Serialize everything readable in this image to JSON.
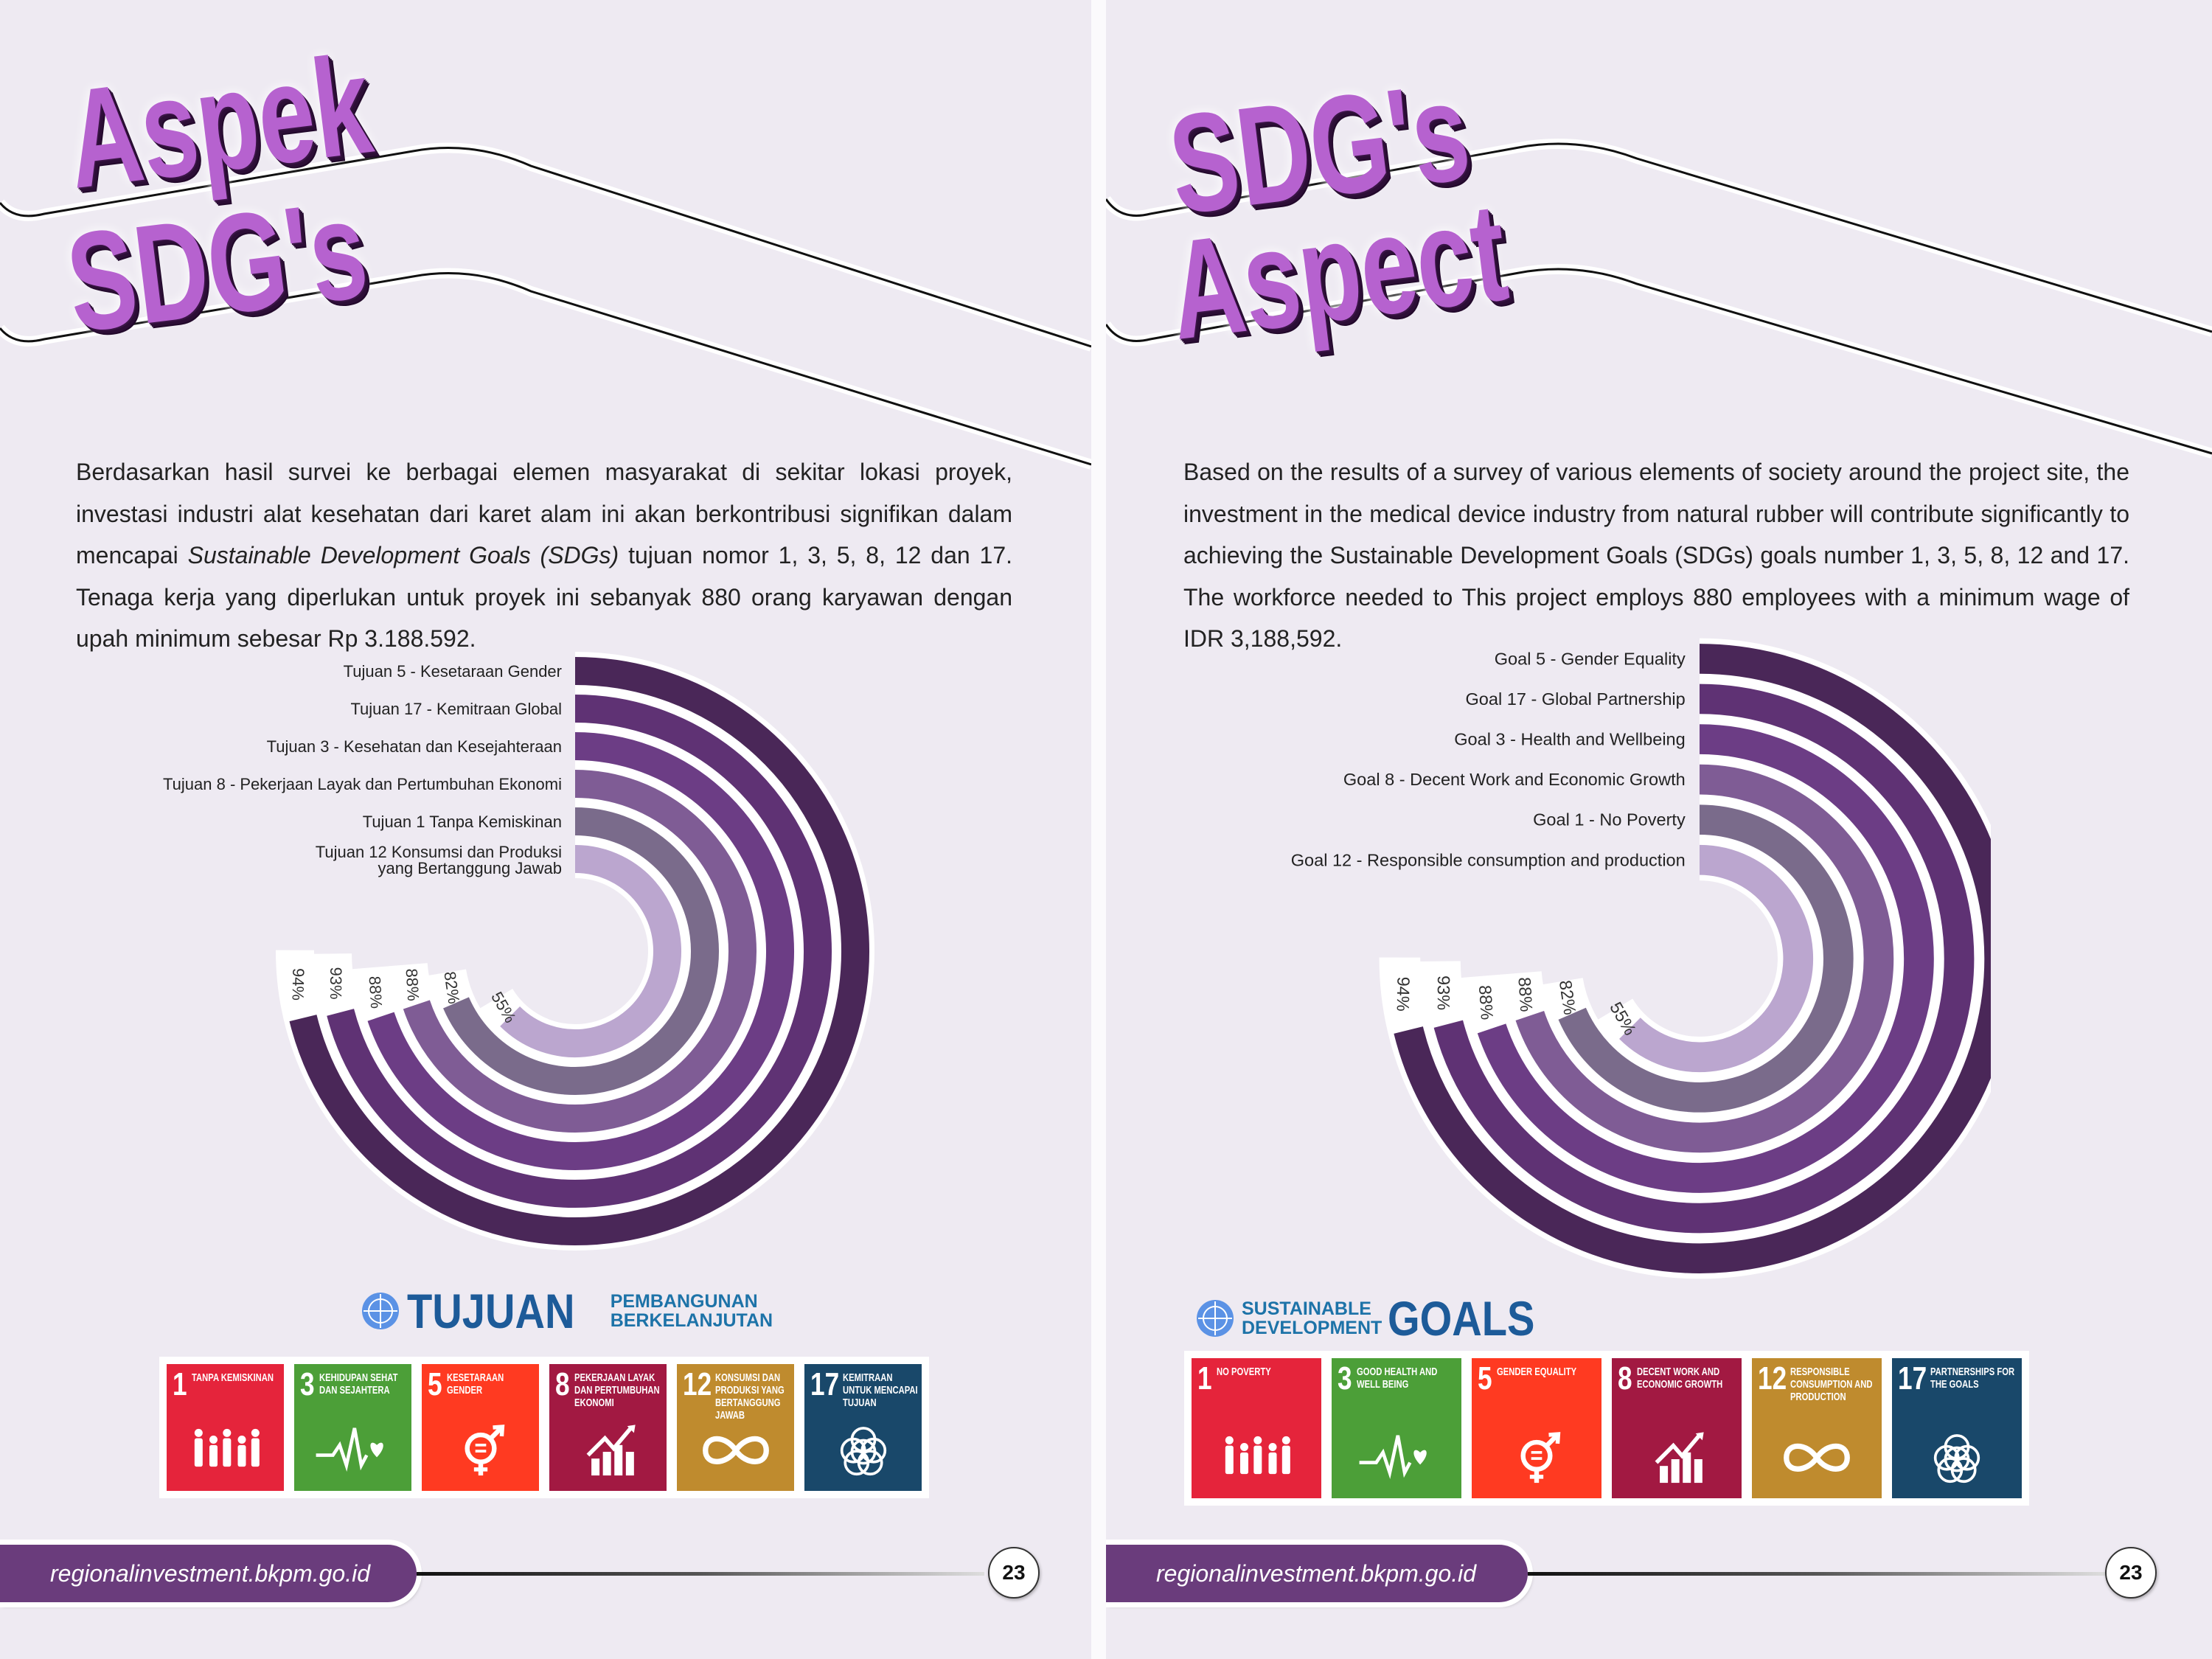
{
  "colors": {
    "background": "#eeeaf2",
    "title": "#b662cf",
    "footer": "#6a3c7c",
    "rings": [
      "#4a2758",
      "#5f3274",
      "#6c3d85",
      "#7f5c95",
      "#7a6b8b",
      "#bba6cf"
    ]
  },
  "pages": [
    {
      "title_lines": [
        "Aspek",
        "SDG's"
      ],
      "paragraph": {
        "before": "Berdasarkan hasil survei ke berbagai elemen masyarakat di sekitar lokasi proyek, investasi industri alat kesehatan dari karet alam ini akan berkontribusi signifikan dalam mencapai ",
        "italic": "Sustainable Development Goals (SDGs)",
        "after": " tujuan nomor 1, 3, 5, 8, 12 dan 17. Tenaga kerja yang diperlukan untuk proyek ini sebanyak 880 orang karyawan dengan upah minimum sebesar Rp 3.188.592."
      },
      "logo": {
        "big": "TUJUAN",
        "small_1": "PEMBANGUNAN",
        "small_2": "BERKELANJUTAN",
        "icon": "un-emblem-icon"
      },
      "tiles": [
        {
          "number": "1",
          "label": "Tanpa Kemiskinan",
          "color": "#e5243b",
          "icon": "family-icon"
        },
        {
          "number": "3",
          "label": "Kehidupan Sehat dan Sejahtera",
          "color": "#4c9f38",
          "icon": "heartbeat-icon"
        },
        {
          "number": "5",
          "label": "Kesetaraan Gender",
          "color": "#ff3a21",
          "icon": "gender-equality-icon"
        },
        {
          "number": "8",
          "label": "Pekerjaan Layak dan Pertumbuhan Ekonomi",
          "color": "#a21942",
          "icon": "growth-chart-icon"
        },
        {
          "number": "12",
          "label": "Konsumsi dan Produksi yang Bertanggung Jawab",
          "color": "#bf8b2e",
          "icon": "infinity-icon"
        },
        {
          "number": "17",
          "label": "Kemitraan untuk Mencapai Tujuan",
          "color": "#19486a",
          "icon": "rings-flower-icon"
        }
      ],
      "footer": {
        "url": "regionalinvestment.bkpm.go.id",
        "page_number": "23"
      }
    },
    {
      "title_lines": [
        "SDG's",
        "Aspect"
      ],
      "paragraph": {
        "before": "Based on the results of a survey of various elements of society around the project site, the investment in the medical device industry from natural rubber will contribute significantly to achieving the Sustainable Development Goals (SDGs) goals number 1, 3, 5, 8, 12 and 17. The workforce needed to This project employs 880 employees with a minimum wage of IDR 3,188,592.",
        "italic": "",
        "after": ""
      },
      "logo": {
        "big": "GOALS",
        "small_1": "SUSTAINABLE",
        "small_2": "DEVELOPMENT",
        "icon": "un-emblem-icon"
      },
      "tiles": [
        {
          "number": "1",
          "label": "No Poverty",
          "color": "#e5243b",
          "icon": "family-icon"
        },
        {
          "number": "3",
          "label": "Good Health and Well Being",
          "color": "#4c9f38",
          "icon": "heartbeat-icon"
        },
        {
          "number": "5",
          "label": "Gender Equality",
          "color": "#ff3a21",
          "icon": "gender-equality-icon"
        },
        {
          "number": "8",
          "label": "Decent Work and Economic Growth",
          "color": "#a21942",
          "icon": "growth-chart-icon"
        },
        {
          "number": "12",
          "label": "Responsible Consumption and Production",
          "color": "#bf8b2e",
          "icon": "infinity-icon"
        },
        {
          "number": "17",
          "label": "Partnerships for the Goals",
          "color": "#19486a",
          "icon": "rings-flower-icon"
        }
      ],
      "footer": {
        "url": "regionalinvestment.bkpm.go.id",
        "page_number": "23"
      }
    }
  ],
  "chart_data": [
    {
      "type": "bar",
      "variant": "radial",
      "categories": [
        "Tujuan 5 - Kesetaraan Gender",
        "Tujuan 17 - Kemitraan Global",
        "Tujuan 3 - Kesehatan dan Kesejahteraan",
        "Tujuan 8 - Pekerjaan Layak dan Pertumbuhan Ekonomi",
        "Tujuan 1 Tanpa Kemiskinan",
        "Tujuan 12 Konsumsi dan Produksi\nyang Bertanggung Jawab"
      ],
      "values": [
        94,
        93,
        88,
        88,
        82,
        55
      ],
      "value_labels": [
        "94%",
        "93%",
        "88%",
        "88%",
        "82%",
        "55%"
      ],
      "unit": "%"
    },
    {
      "type": "bar",
      "variant": "radial",
      "categories": [
        "Goal 5 - Gender Equality",
        "Goal 17 - Global Partnership",
        "Goal 3 - Health and Wellbeing",
        "Goal 8 - Decent Work and Economic Growth",
        "Goal 1 - No Poverty",
        "Goal 12 - Responsible consumption and production"
      ],
      "values": [
        94,
        93,
        88,
        88,
        82,
        55
      ],
      "value_labels": [
        "94%",
        "93%",
        "88%",
        "88%",
        "82%",
        "55%"
      ],
      "unit": "%"
    }
  ]
}
